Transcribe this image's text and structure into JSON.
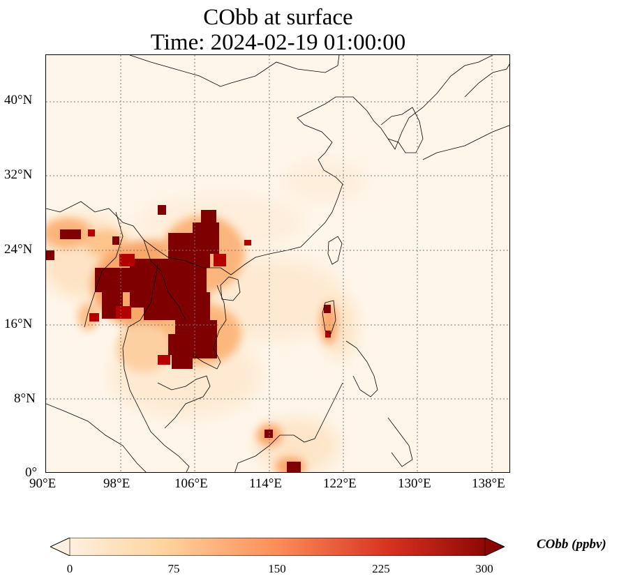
{
  "title": {
    "line1": "CObb at surface",
    "line2": "Time: 2024-02-19 01:00:00"
  },
  "axes": {
    "x_ticks": [
      "90°E",
      "98°E",
      "106°E",
      "114°E",
      "122°E",
      "130°E",
      "138°E"
    ],
    "y_ticks": [
      "40°N",
      "32°N",
      "24°N",
      "16°N",
      "8°N",
      "0°"
    ]
  },
  "colorbar": {
    "label": "CObb (ppbv)",
    "ticks": [
      "0",
      "75",
      "150",
      "225",
      "300"
    ],
    "colors": [
      "#fff5eb",
      "#fdd49e",
      "#fc8d59",
      "#d7301f",
      "#7f0000"
    ]
  }
}
